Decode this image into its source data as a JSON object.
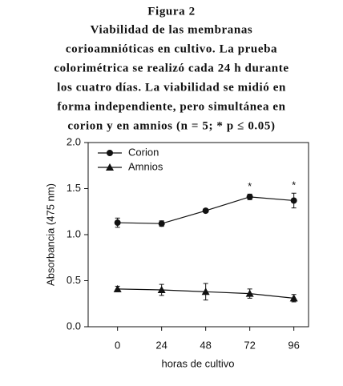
{
  "chart_data": {
    "type": "line",
    "title": "Figura 2",
    "caption_lines": [
      "Viabilidad de las membranas",
      "corioamnióticas en cultivo. La prueba",
      "colorimétrica se realizó cada 24 h durante",
      "los cuatro días. La viabilidad se midió en",
      "forma independiente, pero simultánea en",
      "corion y en amnios (n = 5; * p ≤ 0.05)"
    ],
    "x_label": "horas de cultivo",
    "y_label": "Absorbancia (475 nm)",
    "x": [
      0,
      24,
      48,
      72,
      96
    ],
    "series": [
      {
        "name": "Corion",
        "marker": "circle",
        "color": "#111111",
        "values": [
          1.13,
          1.12,
          1.26,
          1.41,
          1.37
        ],
        "errors": [
          0.05,
          0.03,
          0.02,
          0.03,
          0.08
        ]
      },
      {
        "name": "Amnios",
        "marker": "triangle",
        "color": "#111111",
        "values": [
          0.41,
          0.4,
          0.38,
          0.36,
          0.31
        ],
        "errors": [
          0.03,
          0.06,
          0.09,
          0.05,
          0.04
        ]
      }
    ],
    "annotations": [
      {
        "text": "*",
        "x": 72,
        "series": 0
      },
      {
        "text": "*",
        "x": 96,
        "series": 0
      }
    ],
    "xlim": [
      -16,
      104
    ],
    "xticks": [
      0,
      24,
      48,
      72,
      96
    ],
    "ylim": [
      0,
      2
    ],
    "yticks": [
      {
        "value": 0,
        "label": "0.0"
      },
      0.5,
      {
        "value": 1,
        "label": "1.0"
      },
      1.5,
      {
        "value": 2,
        "label": "2.0"
      }
    ],
    "legend": "upper-left"
  }
}
